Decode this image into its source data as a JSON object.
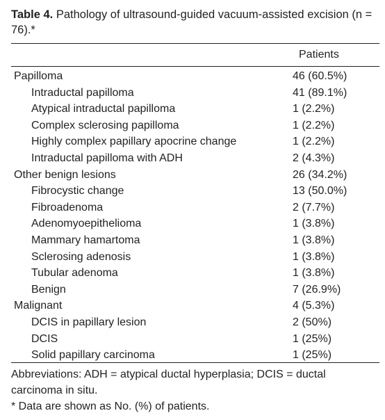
{
  "table": {
    "label": "Table 4.",
    "caption": "Pathology of ultrasound-guided vacuum-assisted excision (n = 76).*",
    "header": "Patients",
    "groups": [
      {
        "name": "Papilloma",
        "value": "46 (60.5%)",
        "items": [
          [
            "Intraductal papilloma",
            "41 (89.1%)"
          ],
          [
            "Atypical intraductal papilloma",
            "1 (2.2%)"
          ],
          [
            "Complex sclerosing papilloma",
            "1 (2.2%)"
          ],
          [
            "Highly complex papillary apocrine change",
            "1 (2.2%)"
          ],
          [
            "Intraductal papilloma with ADH",
            "2 (4.3%)"
          ]
        ]
      },
      {
        "name": "Other benign lesions",
        "value": "26 (34.2%)",
        "items": [
          [
            "Fibrocystic change",
            "13 (50.0%)"
          ],
          [
            "Fibroadenoma",
            "2 (7.7%)"
          ],
          [
            "Adenomyoepithelioma",
            "1 (3.8%)"
          ],
          [
            "Mammary hamartoma",
            "1 (3.8%)"
          ],
          [
            "Sclerosing adenosis",
            "1 (3.8%)"
          ],
          [
            "Tubular adenoma",
            "1 (3.8%)"
          ],
          [
            "Benign",
            "7 (26.9%)"
          ]
        ]
      },
      {
        "name": "Malignant",
        "value": "4 (5.3%)",
        "items": [
          [
            "DCIS in papillary lesion",
            "2 (50%)"
          ],
          [
            "DCIS",
            "1 (25%)"
          ],
          [
            "Solid papillary carcinoma",
            "1 (25%)"
          ]
        ]
      }
    ],
    "abbreviations": "Abbreviations: ADH = atypical ductal hyperplasia; DCIS = ductal carcinoma in situ.",
    "note": "* Data are shown as No. (%) of patients."
  }
}
